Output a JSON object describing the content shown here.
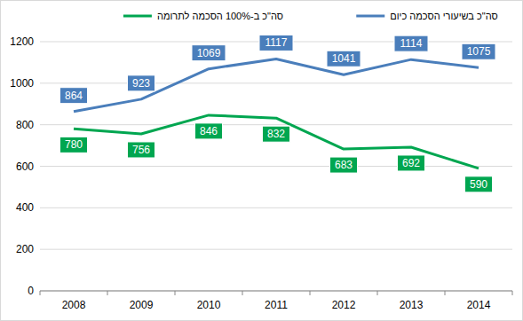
{
  "chart_data": {
    "type": "line",
    "categories": [
      "2008",
      "2009",
      "2010",
      "2011",
      "2012",
      "2013",
      "2014"
    ],
    "series": [
      {
        "name": "סה\"כ ב-100% הסכמה לתרומה",
        "color": "#00a650",
        "values": [
          780,
          756,
          846,
          832,
          683,
          692,
          590
        ]
      },
      {
        "name": "סה\"כ בשיעורי הסכמה כיום",
        "color": "#4a7ebb",
        "values": [
          864,
          923,
          1069,
          1117,
          1041,
          1114,
          1075
        ]
      }
    ],
    "ylim": [
      0,
      1200
    ],
    "yticks": [
      0,
      200,
      400,
      600,
      800,
      1000,
      1200
    ],
    "grid": true,
    "data_labels": true,
    "legend": "top"
  }
}
